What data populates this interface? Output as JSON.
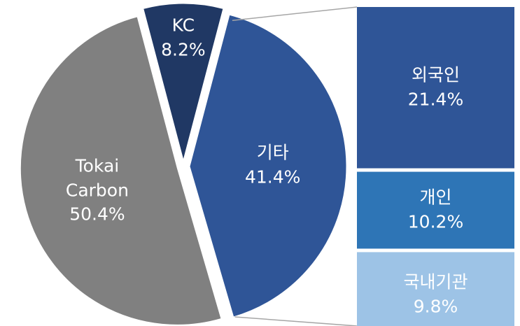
{
  "chart_data": [
    {
      "type": "pie",
      "categories": [
        "KC",
        "기타",
        "Tokai Carbon"
      ],
      "values": [
        8.2,
        41.4,
        50.4
      ],
      "value_labels": [
        "8.2%",
        "41.4%",
        "50.4%"
      ],
      "colors": [
        "#203864",
        "#2f5597",
        "#808080"
      ]
    },
    {
      "type": "bar",
      "categories": [
        "외국인",
        "개인",
        "국내기관"
      ],
      "values": [
        21.4,
        10.2,
        9.8
      ],
      "value_labels": [
        "21.4%",
        "10.2%",
        "9.8%"
      ],
      "colors": [
        "#2f5597",
        "#2e75b6",
        "#9dc3e6"
      ]
    }
  ]
}
